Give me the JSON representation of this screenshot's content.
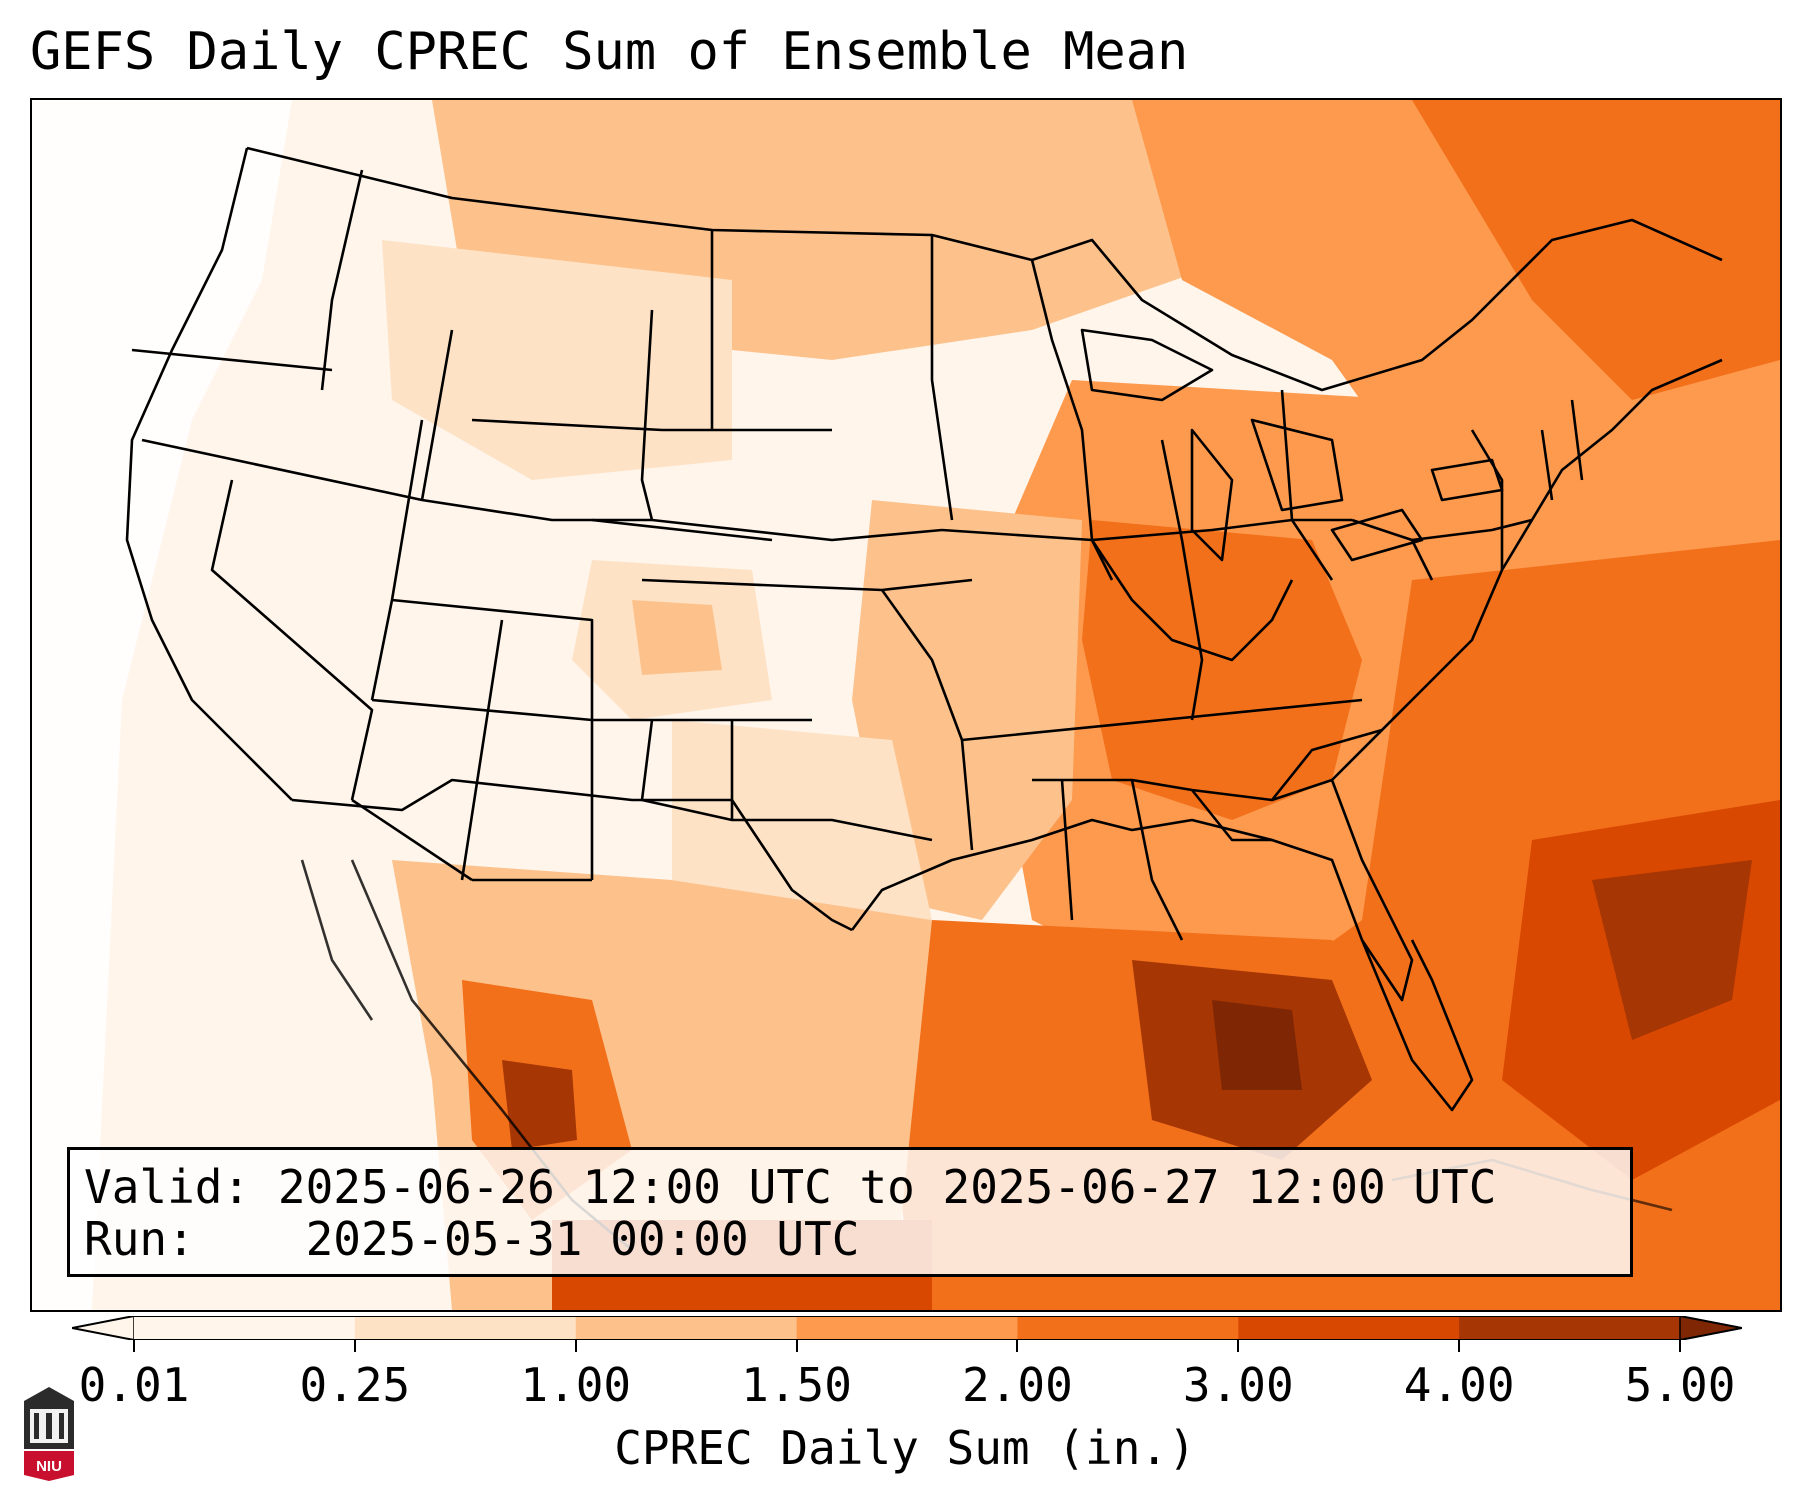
{
  "title": "GEFS Daily CPREC Sum of Ensemble Mean",
  "info": {
    "valid_label": "Valid:",
    "valid_value": "2025-06-26 12:00 UTC to 2025-06-27 12:00 UTC",
    "run_label": "Run:",
    "run_value": "2025-05-31 00:00 UTC"
  },
  "colorbar": {
    "label": "CPREC Daily Sum (in.)",
    "ticks": [
      "0.01",
      "0.25",
      "1.00",
      "1.50",
      "2.00",
      "3.00",
      "4.00",
      "5.00"
    ],
    "colors": [
      "#fff5eb",
      "#fde2c6",
      "#fdc28c",
      "#fd9a4e",
      "#f3701b",
      "#d94801",
      "#a63603",
      "#7f2704"
    ],
    "extend": "both"
  },
  "logo": {
    "text": "NIU",
    "icon": "niu-logo-icon"
  }
}
